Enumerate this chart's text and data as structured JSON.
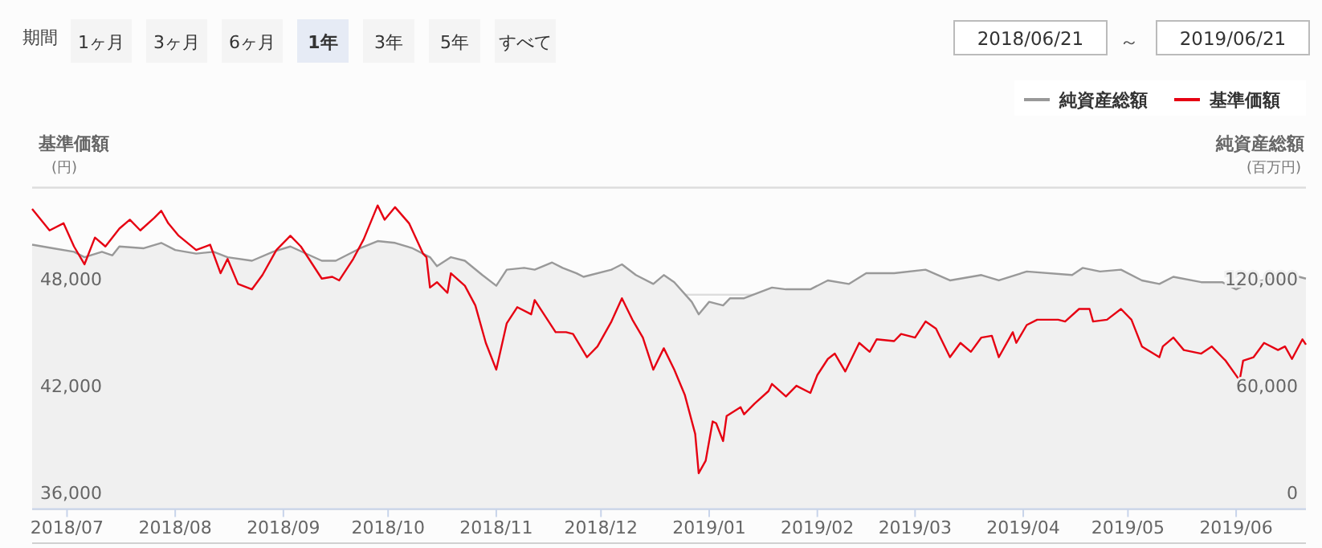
{
  "chart_data": {
    "type": "line",
    "ylabel": "基準価額 (円)",
    "y2label": "純資産総額 (百万円)",
    "grid": "y",
    "legend": "top right",
    "annotations": [
      "期間",
      "1ヶ月",
      "3ヶ月",
      "6ヶ月",
      "1年",
      "3年",
      "5年",
      "すべて",
      "2018/06/21",
      "～",
      "2019/06/21"
    ],
    "xlim": [
      "2018-06-21",
      "2019-06-21"
    ],
    "xticks": [
      {
        "value": "2018-07-01",
        "label": "2018/07"
      },
      {
        "value": "2018-08-01",
        "label": "2018/08"
      },
      {
        "value": "2018-09-01",
        "label": "2018/09"
      },
      {
        "value": "2018-10-01",
        "label": "2018/10"
      },
      {
        "value": "2018-11-01",
        "label": "2018/11"
      },
      {
        "value": "2018-12-01",
        "label": "2018/12"
      },
      {
        "value": "2019-01-01",
        "label": "2019/01"
      },
      {
        "value": "2019-02-01",
        "label": "2019/02"
      },
      {
        "value": "2019-03-01",
        "label": "2019/03"
      },
      {
        "value": "2019-04-01",
        "label": "2019/04"
      },
      {
        "value": "2019-05-01",
        "label": "2019/05"
      },
      {
        "value": "2019-06-01",
        "label": "2019/06"
      }
    ],
    "ylim": [
      36000,
      54000
    ],
    "yticks": [
      {
        "value": 36000,
        "label": "36,000"
      },
      {
        "value": 42000,
        "label": "42,000"
      },
      {
        "value": 48000,
        "label": "48,000"
      },
      {
        "value": 54000,
        "label": null
      }
    ],
    "y2lim": [
      0,
      180000
    ],
    "y2ticks": [
      {
        "value": 0,
        "label": "0"
      },
      {
        "value": 60000,
        "label": "60,000"
      },
      {
        "value": 120000,
        "label": "120,000"
      },
      {
        "value": 180000,
        "label": null
      }
    ],
    "series": [
      {
        "name": "純資産総額",
        "color": "#999999",
        "type": "area",
        "axis": "y2",
        "x": [
          "2018-06-21",
          "2018-06-27",
          "2018-07-03",
          "2018-07-06",
          "2018-07-11",
          "2018-07-14",
          "2018-07-16",
          "2018-07-23",
          "2018-07-28",
          "2018-08-01",
          "2018-08-07",
          "2018-08-12",
          "2018-08-16",
          "2018-08-23",
          "2018-08-29",
          "2018-09-03",
          "2018-09-12",
          "2018-09-16",
          "2018-09-23",
          "2018-09-28",
          "2018-10-03",
          "2018-10-08",
          "2018-10-13",
          "2018-10-15",
          "2018-10-19",
          "2018-10-23",
          "2018-10-28",
          "2018-11-01",
          "2018-11-04",
          "2018-11-09",
          "2018-11-12",
          "2018-11-17",
          "2018-11-20",
          "2018-11-24",
          "2018-11-26",
          "2018-12-04",
          "2018-12-07",
          "2018-12-11",
          "2018-12-16",
          "2018-12-19",
          "2018-12-22",
          "2018-12-27",
          "2018-12-29",
          "2019-01-01",
          "2019-01-05",
          "2019-01-07",
          "2019-01-11",
          "2019-01-19",
          "2019-01-23",
          "2019-01-30",
          "2019-02-04",
          "2019-02-10",
          "2019-02-15",
          "2019-02-23",
          "2019-03-04",
          "2019-03-11",
          "2019-03-20",
          "2019-03-25",
          "2019-04-02",
          "2019-04-15",
          "2019-04-18",
          "2019-04-23",
          "2019-04-29",
          "2019-05-05",
          "2019-05-10",
          "2019-05-14",
          "2019-05-22",
          "2019-05-28",
          "2019-06-01",
          "2019-06-04",
          "2019-06-11",
          "2019-06-17",
          "2019-06-19",
          "2019-06-21"
        ],
        "values": [
          148000,
          146000,
          144000,
          141000,
          144000,
          142000,
          147000,
          146000,
          149000,
          145000,
          143000,
          144000,
          141000,
          139000,
          144000,
          147000,
          139000,
          139000,
          146000,
          150000,
          149000,
          146000,
          141000,
          136000,
          141000,
          139000,
          131000,
          125000,
          134000,
          135000,
          134000,
          138000,
          135000,
          132000,
          130000,
          134000,
          137000,
          131000,
          126000,
          131000,
          127000,
          116000,
          109000,
          116000,
          114000,
          118000,
          118000,
          124000,
          123000,
          123000,
          128000,
          126000,
          132000,
          132000,
          134000,
          128000,
          131000,
          128000,
          133000,
          131000,
          135000,
          133000,
          134000,
          128000,
          126000,
          130000,
          127000,
          127000,
          123000,
          126000,
          129000,
          127000,
          130000,
          129000
        ]
      },
      {
        "name": "基準価額",
        "color": "#e60012",
        "x": [
          "2018-06-21",
          "2018-06-26",
          "2018-06-30",
          "2018-07-03",
          "2018-07-06",
          "2018-07-09",
          "2018-07-12",
          "2018-07-16",
          "2018-07-19",
          "2018-07-22",
          "2018-07-26",
          "2018-07-28",
          "2018-07-30",
          "2018-08-02",
          "2018-08-07",
          "2018-08-11",
          "2018-08-14",
          "2018-08-16",
          "2018-08-19",
          "2018-08-23",
          "2018-08-26",
          "2018-08-30",
          "2018-09-03",
          "2018-09-06",
          "2018-09-12",
          "2018-09-15",
          "2018-09-17",
          "2018-09-21",
          "2018-09-24",
          "2018-09-28",
          "2018-09-30",
          "2018-10-03",
          "2018-10-07",
          "2018-10-11",
          "2018-10-12",
          "2018-10-13",
          "2018-10-15",
          "2018-10-18",
          "2018-10-19",
          "2018-10-23",
          "2018-10-26",
          "2018-10-29",
          "2018-11-01",
          "2018-11-04",
          "2018-11-07",
          "2018-11-11",
          "2018-11-12",
          "2018-11-18",
          "2018-11-21",
          "2018-11-23",
          "2018-11-27",
          "2018-11-30",
          "2018-12-04",
          "2018-12-07",
          "2018-12-10",
          "2018-12-13",
          "2018-12-16",
          "2018-12-19",
          "2018-12-22",
          "2018-12-25",
          "2018-12-28",
          "2018-12-29",
          "2018-12-31",
          "2019-01-02",
          "2019-01-03",
          "2019-01-05",
          "2019-01-06",
          "2019-01-10",
          "2019-01-11",
          "2019-01-14",
          "2019-01-18",
          "2019-01-19",
          "2019-01-23",
          "2019-01-26",
          "2019-01-30",
          "2019-02-01",
          "2019-02-04",
          "2019-02-06",
          "2019-02-09",
          "2019-02-13",
          "2019-02-16",
          "2019-02-18",
          "2019-02-23",
          "2019-02-25",
          "2019-03-01",
          "2019-03-04",
          "2019-03-07",
          "2019-03-11",
          "2019-03-14",
          "2019-03-17",
          "2019-03-20",
          "2019-03-23",
          "2019-03-25",
          "2019-03-29",
          "2019-03-30",
          "2019-04-02",
          "2019-04-05",
          "2019-04-11",
          "2019-04-13",
          "2019-04-17",
          "2019-04-20",
          "2019-04-21",
          "2019-04-25",
          "2019-04-29",
          "2019-05-02",
          "2019-05-05",
          "2019-05-10",
          "2019-05-11",
          "2019-05-14",
          "2019-05-17",
          "2019-05-22",
          "2019-05-25",
          "2019-05-29",
          "2019-06-02",
          "2019-06-03",
          "2019-06-06",
          "2019-06-09",
          "2019-06-13",
          "2019-06-15",
          "2019-06-17",
          "2019-06-20",
          "2019-06-21"
        ],
        "values": [
          52800,
          51600,
          52000,
          50700,
          49700,
          51200,
          50700,
          51700,
          52200,
          51600,
          52300,
          52700,
          52000,
          51300,
          50500,
          50800,
          49200,
          50000,
          48600,
          48300,
          49100,
          50500,
          51300,
          50700,
          48900,
          49000,
          48800,
          50000,
          51100,
          53000,
          52200,
          52900,
          52000,
          50300,
          50100,
          48400,
          48700,
          48100,
          49200,
          48500,
          47400,
          45300,
          43800,
          46400,
          47300,
          46900,
          47700,
          45900,
          45900,
          45800,
          44500,
          45100,
          46500,
          47800,
          46600,
          45600,
          43800,
          45000,
          43800,
          42400,
          40200,
          38000,
          38700,
          40900,
          40800,
          39800,
          41200,
          41700,
          41300,
          41900,
          42600,
          43000,
          42300,
          42900,
          42500,
          43500,
          44400,
          44700,
          43700,
          45300,
          44800,
          45500,
          45400,
          45800,
          45600,
          46500,
          46100,
          44500,
          45300,
          44800,
          45600,
          45700,
          44500,
          45900,
          45300,
          46300,
          46600,
          46600,
          46500,
          47200,
          47200,
          46500,
          46600,
          47200,
          46600,
          45100,
          44500,
          45100,
          45600,
          44900,
          44700,
          45100,
          44300,
          43200,
          44300,
          44500,
          45300,
          44900,
          45100,
          44400,
          45500,
          45200
        ]
      }
    ]
  }
}
